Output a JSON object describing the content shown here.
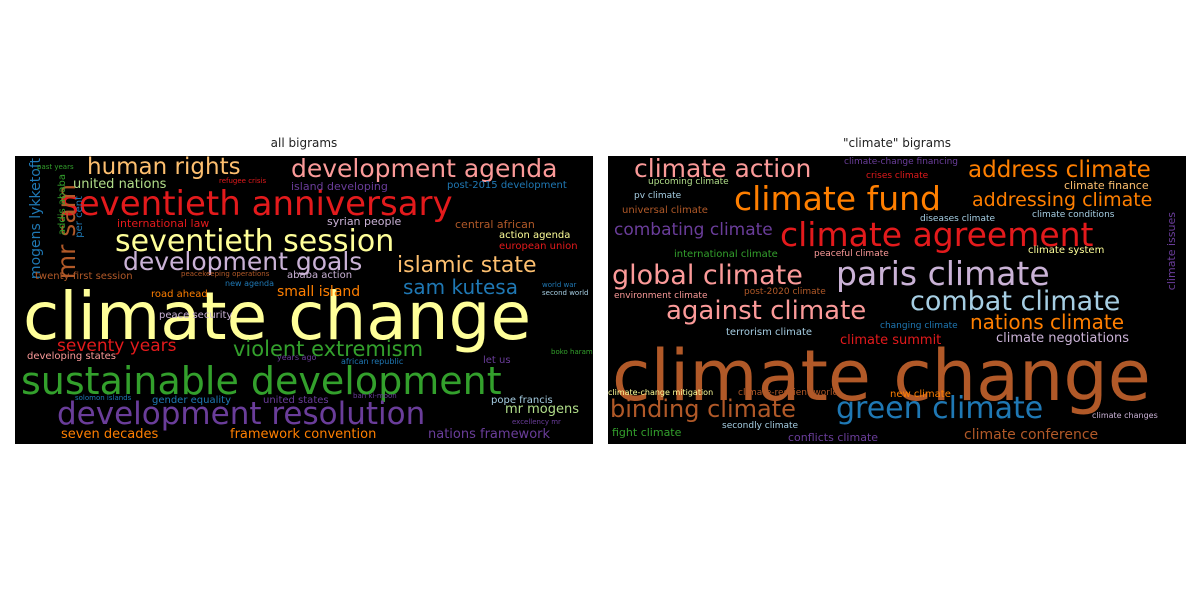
{
  "panels": [
    {
      "title": "all bigrams",
      "words": [
        {
          "text": "climate change",
          "color": "#ffff99"
        },
        {
          "text": "sustainable development",
          "color": "#33a02c"
        },
        {
          "text": "development resolution",
          "color": "#6a3d9a"
        },
        {
          "text": "seventieth anniversary",
          "color": "#e31a1c"
        },
        {
          "text": "seventieth session",
          "color": "#ffff99"
        },
        {
          "text": "development agenda",
          "color": "#fb9a99"
        },
        {
          "text": "development goals",
          "color": "#cab2d6"
        },
        {
          "text": "human rights",
          "color": "#fdbf6f"
        },
        {
          "text": "islamic state",
          "color": "#fdbf6f"
        },
        {
          "text": "sam kutesa",
          "color": "#1f78b4"
        },
        {
          "text": "violent extremism",
          "color": "#33a02c"
        },
        {
          "text": "mr sam",
          "color": "#b15928"
        },
        {
          "text": "seventy years",
          "color": "#e31a1c"
        },
        {
          "text": "mogens lykketoft",
          "color": "#1f78b4"
        },
        {
          "text": "united nations",
          "color": "#b2df8a"
        },
        {
          "text": "small island",
          "color": "#ff7f00"
        },
        {
          "text": "mr mogens",
          "color": "#b2df8a"
        },
        {
          "text": "seven decades",
          "color": "#ff7f00"
        },
        {
          "text": "framework convention",
          "color": "#ff7f00"
        },
        {
          "text": "nations framework",
          "color": "#6a3d9a"
        },
        {
          "text": "island developing",
          "color": "#6a3d9a"
        },
        {
          "text": "post-2015 development",
          "color": "#1f78b4"
        },
        {
          "text": "syrian people",
          "color": "#cab2d6"
        },
        {
          "text": "international law",
          "color": "#e31a1c"
        },
        {
          "text": "central african",
          "color": "#b15928"
        },
        {
          "text": "action agenda",
          "color": "#ffff99"
        },
        {
          "text": "european union",
          "color": "#e31a1c"
        },
        {
          "text": "twenty-first session",
          "color": "#b15928"
        },
        {
          "text": "ababa action",
          "color": "#cab2d6"
        },
        {
          "text": "road ahead",
          "color": "#ff7f00"
        },
        {
          "text": "new agenda",
          "color": "#1f78b4"
        },
        {
          "text": "peace security",
          "color": "#cab2d6"
        },
        {
          "text": "developing states",
          "color": "#fb9a99"
        },
        {
          "text": "gender equality",
          "color": "#1f78b4"
        },
        {
          "text": "united states",
          "color": "#6a3d9a"
        },
        {
          "text": "pope francis",
          "color": "#a6cee3"
        },
        {
          "text": "let us",
          "color": "#6a3d9a"
        },
        {
          "text": "african republic",
          "color": "#1f78b4"
        },
        {
          "text": "years ago",
          "color": "#6a3d9a"
        },
        {
          "text": "addis ababa",
          "color": "#33a02c"
        },
        {
          "text": "per cent",
          "color": "#1f78b4"
        },
        {
          "text": "past years",
          "color": "#33a02c"
        },
        {
          "text": "refugee crisis",
          "color": "#e31a1c"
        },
        {
          "text": "peacekeeping operations",
          "color": "#b15928"
        },
        {
          "text": "world war",
          "color": "#1f78b4"
        },
        {
          "text": "second world",
          "color": "#a6cee3"
        },
        {
          "text": "boko haram",
          "color": "#33a02c"
        },
        {
          "text": "solomon islands",
          "color": "#1f78b4"
        },
        {
          "text": "ban ki-moon",
          "color": "#6a3d9a"
        },
        {
          "text": "excellency mr",
          "color": "#6a3d9a"
        }
      ]
    },
    {
      "title": "\"climate\" bigrams",
      "words": [
        {
          "text": "climate change",
          "color": "#b15928"
        },
        {
          "text": "climate agreement",
          "color": "#e31a1c"
        },
        {
          "text": "paris climate",
          "color": "#cab2d6"
        },
        {
          "text": "climate fund",
          "color": "#ff7f00"
        },
        {
          "text": "green climate",
          "color": "#1f78b4"
        },
        {
          "text": "global climate",
          "color": "#fb9a99"
        },
        {
          "text": "combat climate",
          "color": "#a6cee3"
        },
        {
          "text": "climate action",
          "color": "#fb9a99"
        },
        {
          "text": "against climate",
          "color": "#fb9a99"
        },
        {
          "text": "binding climate",
          "color": "#b15928"
        },
        {
          "text": "address climate",
          "color": "#ff7f00"
        },
        {
          "text": "addressing climate",
          "color": "#ff7f00"
        },
        {
          "text": "nations climate",
          "color": "#ff7f00"
        },
        {
          "text": "combating climate",
          "color": "#6a3d9a"
        },
        {
          "text": "climate conference",
          "color": "#b15928"
        },
        {
          "text": "climate summit",
          "color": "#e31a1c"
        },
        {
          "text": "climate negotiations",
          "color": "#cab2d6"
        },
        {
          "text": "climate-change financing",
          "color": "#6a3d9a"
        },
        {
          "text": "crises climate",
          "color": "#e31a1c"
        },
        {
          "text": "upcoming climate",
          "color": "#b2df8a"
        },
        {
          "text": "climate finance",
          "color": "#fdbf6f"
        },
        {
          "text": "pv climate",
          "color": "#a6cee3"
        },
        {
          "text": "universal climate",
          "color": "#b15928"
        },
        {
          "text": "diseases climate",
          "color": "#a6cee3"
        },
        {
          "text": "climate conditions",
          "color": "#a6cee3"
        },
        {
          "text": "international climate",
          "color": "#33a02c"
        },
        {
          "text": "peaceful climate",
          "color": "#fb9a99"
        },
        {
          "text": "climate system",
          "color": "#ffff99"
        },
        {
          "text": "climate issues",
          "color": "#6a3d9a"
        },
        {
          "text": "environment climate",
          "color": "#fb9a99"
        },
        {
          "text": "post-2020 climate",
          "color": "#b15928"
        },
        {
          "text": "changing climate",
          "color": "#1f78b4"
        },
        {
          "text": "terrorism climate",
          "color": "#a6cee3"
        },
        {
          "text": "climate-change mitigation",
          "color": "#ffff99"
        },
        {
          "text": "climate-resilient world",
          "color": "#b15928"
        },
        {
          "text": "new climate",
          "color": "#ff7f00"
        },
        {
          "text": "fight climate",
          "color": "#33a02c"
        },
        {
          "text": "secondly climate",
          "color": "#a6cee3"
        },
        {
          "text": "conflicts climate",
          "color": "#6a3d9a"
        },
        {
          "text": "climate changes",
          "color": "#cab2d6"
        }
      ]
    }
  ]
}
